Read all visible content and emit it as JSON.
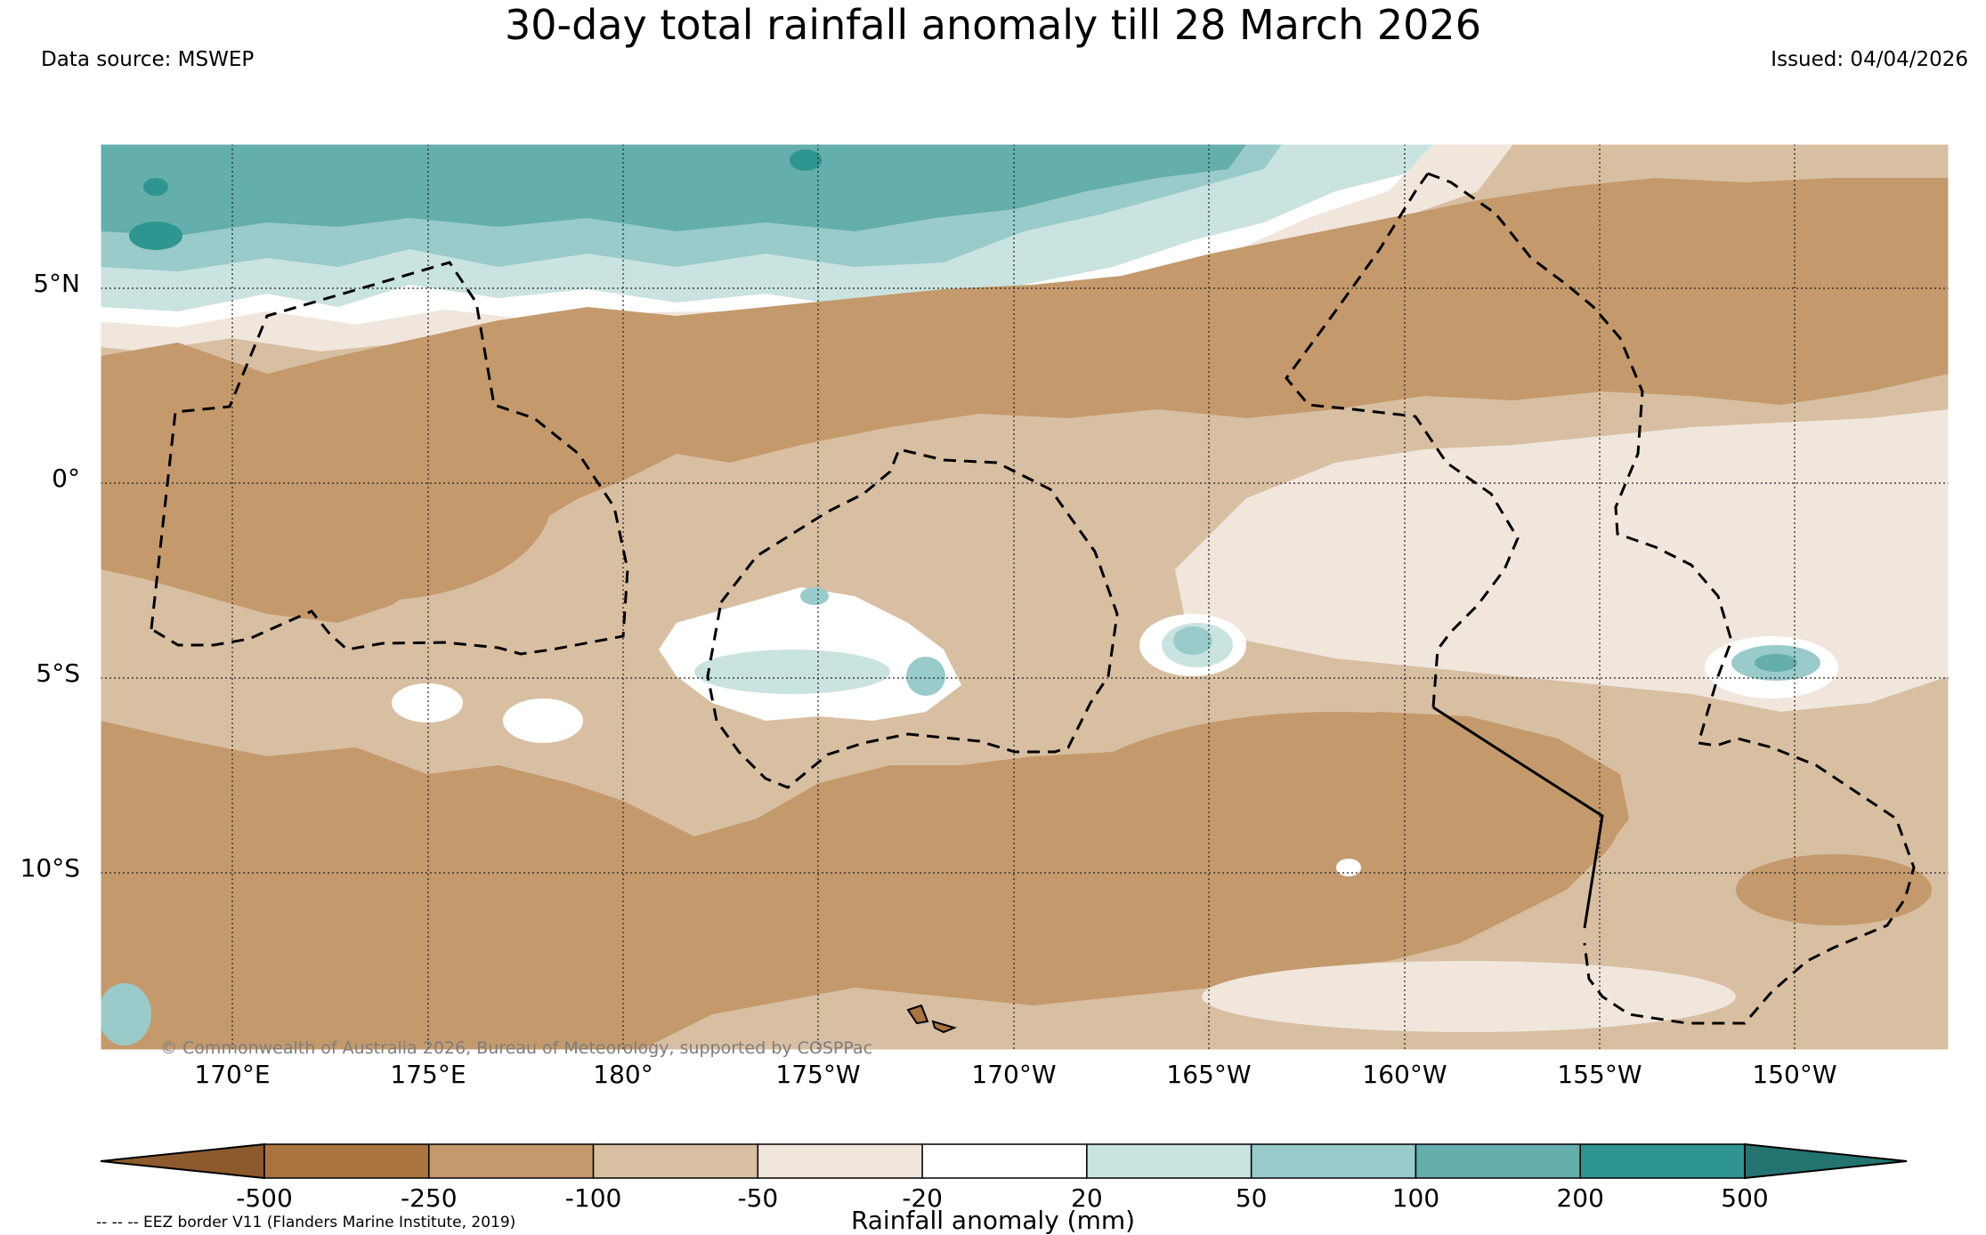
{
  "title": "30-day total rainfall anomaly till 28 March 2026",
  "data_source": "Data source: MSWEP",
  "issued": "Issued: 04/04/2026",
  "copyright": "© Commonwealth of Australia 2026, Bureau of Meteorology, supported by COSPPac",
  "eez_note": "-- -- -- EEZ border V11 (Flanders Marine Institute, 2019)",
  "map": {
    "lat_labels": [
      "5°N",
      "0°",
      "5°S",
      "10°S"
    ],
    "lon_labels": [
      "170°E",
      "175°E",
      "180°",
      "175°W",
      "170°W",
      "165°W",
      "160°W",
      "155°W",
      "150°W"
    ],
    "lat_range": [
      "15°S",
      "8°N"
    ],
    "lon_range": [
      "167°E",
      "146°W"
    ],
    "gridlines": true
  },
  "colorbar": {
    "label": "Rainfall anomaly (mm)",
    "ticks": [
      "-500",
      "-250",
      "-100",
      "-50",
      "-20",
      "20",
      "50",
      "100",
      "200",
      "500"
    ],
    "colors": [
      "#8c5a2c",
      "#a97440",
      "#c49a6c",
      "#d8bfa2",
      "#f0e6dc",
      "#ffffff",
      "#c9e3e1",
      "#98cbc9",
      "#64aeac",
      "#2f9591",
      "#237471"
    ]
  }
}
